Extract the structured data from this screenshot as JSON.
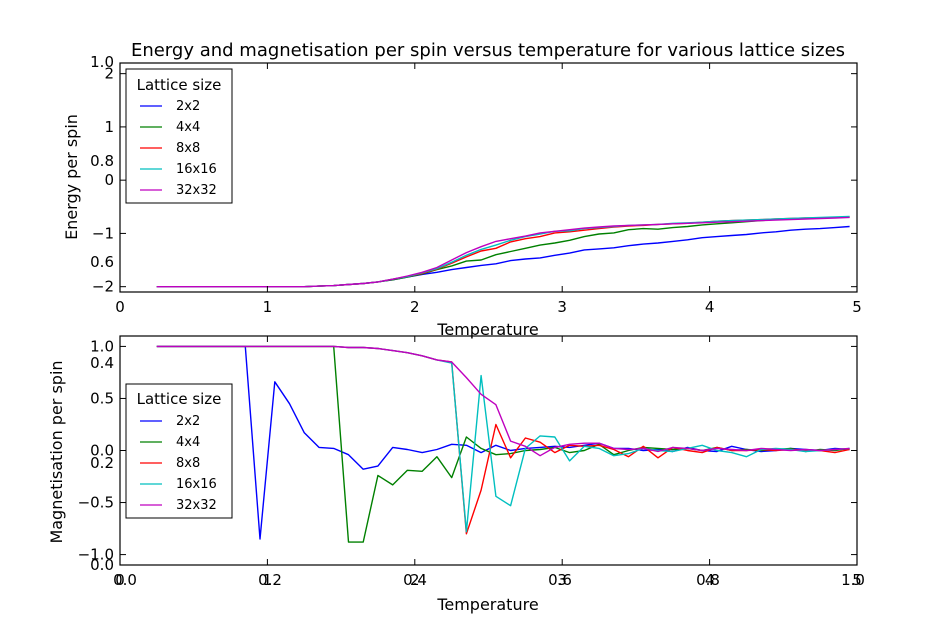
{
  "chart_data": [
    {
      "type": "line",
      "title": "Energy and magnetisation per spin versus temperature for various lattice sizes",
      "xlabel": "Temperature",
      "ylabel": "Energy per spin",
      "xlim": [
        0,
        5
      ],
      "ylim": [
        -2.1,
        2.2
      ],
      "xticks": [
        "0",
        "1",
        "2",
        "3",
        "4",
        "5"
      ],
      "yticks": [
        "−2",
        "−1",
        "0",
        "1",
        "2"
      ],
      "ghost_yticks": [
        "0.6",
        "0.8",
        "1.0"
      ],
      "legend_title": "Lattice size",
      "legend_position": "upper-left",
      "x": [
        0.25,
        0.35,
        0.45,
        0.55,
        0.65,
        0.75,
        0.85,
        0.95,
        1.05,
        1.15,
        1.25,
        1.35,
        1.45,
        1.55,
        1.65,
        1.75,
        1.85,
        1.95,
        2.05,
        2.15,
        2.25,
        2.35,
        2.45,
        2.55,
        2.65,
        2.75,
        2.85,
        2.95,
        3.05,
        3.15,
        3.25,
        3.35,
        3.45,
        3.55,
        3.65,
        3.75,
        3.85,
        3.95,
        4.05,
        4.15,
        4.25,
        4.35,
        4.45,
        4.55,
        4.65,
        4.75,
        4.85,
        4.95
      ],
      "series": [
        {
          "name": "2x2",
          "color": "#0000ff",
          "values": [
            -2,
            -2,
            -2,
            -2,
            -2,
            -2,
            -2,
            -2,
            -2,
            -2,
            -2,
            -1.99,
            -1.98,
            -1.96,
            -1.94,
            -1.91,
            -1.87,
            -1.82,
            -1.77,
            -1.73,
            -1.68,
            -1.64,
            -1.6,
            -1.57,
            -1.51,
            -1.48,
            -1.46,
            -1.41,
            -1.37,
            -1.31,
            -1.29,
            -1.27,
            -1.23,
            -1.2,
            -1.18,
            -1.15,
            -1.12,
            -1.08,
            -1.06,
            -1.04,
            -1.02,
            -0.99,
            -0.97,
            -0.94,
            -0.92,
            -0.91,
            -0.89,
            -0.87
          ]
        },
        {
          "name": "4x4",
          "color": "#008000",
          "values": [
            -2,
            -2,
            -2,
            -2,
            -2,
            -2,
            -2,
            -2,
            -2,
            -2,
            -2,
            -1.99,
            -1.98,
            -1.96,
            -1.94,
            -1.91,
            -1.87,
            -1.82,
            -1.76,
            -1.68,
            -1.61,
            -1.52,
            -1.5,
            -1.4,
            -1.34,
            -1.28,
            -1.22,
            -1.18,
            -1.13,
            -1.06,
            -1.01,
            -0.99,
            -0.93,
            -0.91,
            -0.92,
            -0.89,
            -0.87,
            -0.84,
            -0.82,
            -0.8,
            -0.78,
            -0.76,
            -0.74,
            -0.73,
            -0.72,
            -0.71,
            -0.7,
            -0.69
          ]
        },
        {
          "name": "8x8",
          "color": "#ff0000",
          "values": [
            -2,
            -2,
            -2,
            -2,
            -2,
            -2,
            -2,
            -2,
            -2,
            -2,
            -2,
            -1.99,
            -1.98,
            -1.96,
            -1.94,
            -1.91,
            -1.86,
            -1.81,
            -1.75,
            -1.67,
            -1.56,
            -1.44,
            -1.33,
            -1.28,
            -1.16,
            -1.1,
            -1.06,
            -0.99,
            -0.97,
            -0.94,
            -0.91,
            -0.88,
            -0.86,
            -0.85,
            -0.83,
            -0.82,
            -0.81,
            -0.79,
            -0.77,
            -0.76,
            -0.75,
            -0.74,
            -0.73,
            -0.72,
            -0.71,
            -0.71,
            -0.7,
            -0.69
          ]
        },
        {
          "name": "16x16",
          "color": "#00bfbf",
          "values": [
            -2,
            -2,
            -2,
            -2,
            -2,
            -2,
            -2,
            -2,
            -2,
            -2,
            -2,
            -1.99,
            -1.98,
            -1.96,
            -1.94,
            -1.91,
            -1.86,
            -1.81,
            -1.74,
            -1.66,
            -1.54,
            -1.41,
            -1.3,
            -1.22,
            -1.13,
            -1.06,
            -1.01,
            -0.96,
            -0.95,
            -0.91,
            -0.89,
            -0.87,
            -0.85,
            -0.84,
            -0.83,
            -0.81,
            -0.8,
            -0.79,
            -0.77,
            -0.76,
            -0.75,
            -0.74,
            -0.73,
            -0.72,
            -0.71,
            -0.7,
            -0.69,
            -0.68
          ]
        },
        {
          "name": "32x32",
          "color": "#bf00bf",
          "values": [
            -2,
            -2,
            -2,
            -2,
            -2,
            -2,
            -2,
            -2,
            -2,
            -2,
            -2,
            -1.99,
            -1.98,
            -1.96,
            -1.94,
            -1.91,
            -1.86,
            -1.8,
            -1.73,
            -1.64,
            -1.5,
            -1.36,
            -1.25,
            -1.15,
            -1.1,
            -1.05,
            -0.99,
            -0.96,
            -0.93,
            -0.9,
            -0.88,
            -0.86,
            -0.85,
            -0.84,
            -0.83,
            -0.82,
            -0.81,
            -0.8,
            -0.79,
            -0.78,
            -0.77,
            -0.76,
            -0.75,
            -0.74,
            -0.73,
            -0.72,
            -0.71,
            -0.7
          ]
        }
      ]
    },
    {
      "type": "line",
      "title": "",
      "xlabel": "Temperature",
      "ylabel": "Magnetisation per spin",
      "xlim": [
        0,
        5
      ],
      "ylim": [
        -1.1,
        1.1
      ],
      "xticks": [
        "0",
        "1",
        "2",
        "3",
        "4",
        "5"
      ],
      "yticks": [
        "−1.0",
        "−0.5",
        "0.0",
        "0.5",
        "1.0"
      ],
      "ghost_xticks": [
        "0.0",
        "0.2",
        "0.4",
        "0.6",
        "0.8",
        "1.0"
      ],
      "ghost_yticks": [
        "0.0",
        "0.2",
        "0.4"
      ],
      "legend_title": "Lattice size",
      "legend_position": "center-left",
      "x": [
        0.25,
        0.35,
        0.45,
        0.55,
        0.65,
        0.75,
        0.85,
        0.95,
        1.05,
        1.15,
        1.25,
        1.35,
        1.45,
        1.55,
        1.65,
        1.75,
        1.85,
        1.95,
        2.05,
        2.15,
        2.25,
        2.35,
        2.45,
        2.55,
        2.65,
        2.75,
        2.85,
        2.95,
        3.05,
        3.15,
        3.25,
        3.35,
        3.45,
        3.55,
        3.65,
        3.75,
        3.85,
        3.95,
        4.05,
        4.15,
        4.25,
        4.35,
        4.45,
        4.55,
        4.65,
        4.75,
        4.85,
        4.95
      ],
      "series": [
        {
          "name": "2x2",
          "color": "#0000ff",
          "values": [
            1,
            1,
            1,
            1,
            1,
            1,
            1,
            -0.85,
            0.66,
            0.45,
            0.17,
            0.03,
            0.02,
            -0.04,
            -0.18,
            -0.15,
            0.03,
            0.01,
            -0.02,
            0.01,
            0.06,
            0.05,
            -0.02,
            0.05,
            0,
            0.02,
            0.03,
            0.04,
            0.03,
            0.05,
            0.07,
            0.02,
            0.02,
            0,
            0.01,
            -0.01,
            0.03,
            0,
            -0.01,
            0.04,
            0.01,
            -0.01,
            0,
            0.02,
            0.01,
            0,
            0.02,
            0.01
          ]
        },
        {
          "name": "4x4",
          "color": "#008000",
          "values": [
            1,
            1,
            1,
            1,
            1,
            1,
            1,
            1,
            1,
            1,
            1,
            1,
            1,
            -0.88,
            -0.88,
            -0.24,
            -0.33,
            -0.19,
            -0.2,
            -0.06,
            -0.26,
            0.13,
            0.02,
            -0.04,
            -0.03,
            0,
            0.01,
            0.03,
            -0.02,
            0,
            0.06,
            -0.04,
            0,
            0.03,
            0.02,
            0.01,
            0.02,
            0,
            0.03,
            0,
            0.01,
            0,
            0.01,
            0.02,
            -0.01,
            0.01,
            0,
            0.02
          ]
        },
        {
          "name": "8x8",
          "color": "#ff0000",
          "values": [
            1,
            1,
            1,
            1,
            1,
            1,
            1,
            1,
            1,
            1,
            1,
            1,
            1,
            0.99,
            0.99,
            0.98,
            0.96,
            0.94,
            0.91,
            0.87,
            0.85,
            -0.8,
            -0.38,
            0.25,
            -0.07,
            0.12,
            0.08,
            -0.02,
            0.05,
            0.04,
            0.05,
            0.01,
            -0.06,
            0.04,
            -0.07,
            0.03,
            0,
            -0.02,
            0.03,
            0,
            0,
            0.01,
            0,
            0.01,
            0,
            0,
            -0.02,
            0.01
          ]
        },
        {
          "name": "16x16",
          "color": "#00bfbf",
          "values": [
            1,
            1,
            1,
            1,
            1,
            1,
            1,
            1,
            1,
            1,
            1,
            1,
            1,
            0.99,
            0.99,
            0.98,
            0.96,
            0.94,
            0.91,
            0.87,
            0.84,
            -0.78,
            0.72,
            -0.44,
            -0.53,
            0.02,
            0.14,
            0.13,
            -0.1,
            0.04,
            0.02,
            -0.05,
            -0.03,
            0.02,
            0,
            -0.01,
            0.02,
            0.05,
            0,
            -0.02,
            -0.06,
            0.01,
            0.02,
            0.01,
            -0.01,
            0,
            0.01,
            0.02
          ]
        },
        {
          "name": "32x32",
          "color": "#bf00bf",
          "values": [
            1,
            1,
            1,
            1,
            1,
            1,
            1,
            1,
            1,
            1,
            1,
            1,
            1,
            0.99,
            0.99,
            0.98,
            0.96,
            0.94,
            0.91,
            0.87,
            0.85,
            0.7,
            0.54,
            0.44,
            0.09,
            0.04,
            -0.05,
            0.03,
            0.06,
            0.07,
            0.07,
            0.02,
            0.01,
            0.02,
            -0.01,
            0.03,
            0.02,
            0,
            0.02,
            0.01,
            0,
            0.02,
            0.01,
            0,
            0.01,
            0,
            0.01,
            0.02
          ]
        }
      ]
    }
  ]
}
